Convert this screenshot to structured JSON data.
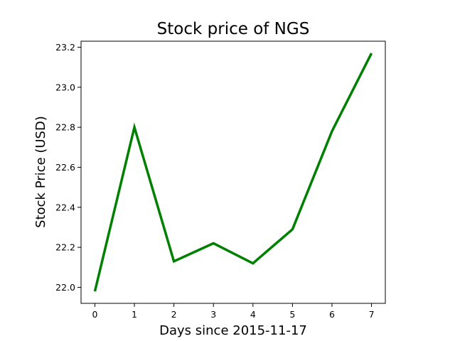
{
  "chart_data": {
    "type": "line",
    "title": "Stock price of NGS",
    "xlabel": "Days since 2015-11-17",
    "ylabel": "Stock Price (USD)",
    "x": [
      0,
      1,
      2,
      3,
      4,
      5,
      6,
      7
    ],
    "xticks": [
      "0",
      "1",
      "2",
      "3",
      "4",
      "5",
      "6",
      "7"
    ],
    "xlim": [
      -0.35,
      7.35
    ],
    "yticks": [
      "22.0",
      "22.2",
      "22.4",
      "22.6",
      "22.8",
      "23.0",
      "23.2"
    ],
    "ylim": [
      21.92,
      23.23
    ],
    "grid": false,
    "legend": "none",
    "series": [
      {
        "values": [
          21.98,
          22.8,
          22.13,
          22.22,
          22.12,
          22.29,
          22.78,
          23.17
        ],
        "color": "#008000"
      }
    ]
  }
}
